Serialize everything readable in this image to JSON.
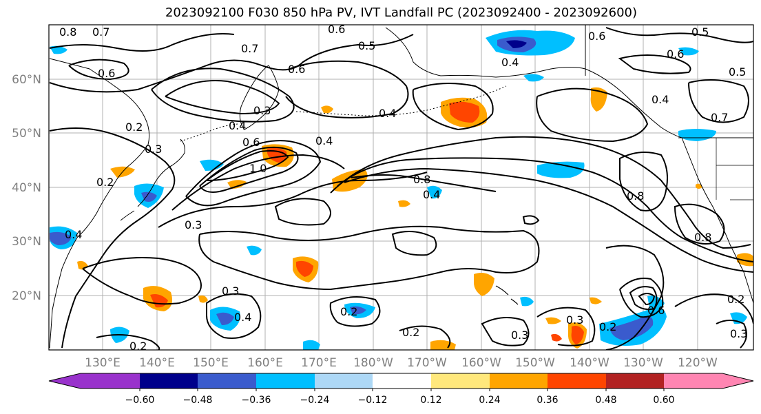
{
  "title": "2023092100 F030 850 hPa PV, IVT Landfall PC (2023092400 - 2023092600)",
  "map": {
    "lat_labels": [
      "60°N",
      "50°N",
      "40°N",
      "30°N",
      "20°N"
    ],
    "lon_labels": [
      "130°E",
      "140°E",
      "150°E",
      "160°E",
      "170°E",
      "180°W",
      "170°W",
      "160°W",
      "150°W",
      "140°W",
      "130°W",
      "120°W"
    ],
    "contour_labels": [
      "0.8",
      "0.7",
      "0.6",
      "0.6",
      "0.5",
      "0.6",
      "0.7",
      "0.6",
      "0.4",
      "0.5",
      "0.6",
      "0.5",
      "0.4",
      "0.4",
      "0.3",
      "0.2",
      "0.4",
      "0.6",
      "1.0",
      "0.8",
      "0.4",
      "0.8",
      "0.3",
      "0.3",
      "0.2",
      "0.8",
      "0.4",
      "0.3",
      "0.4",
      "0.2",
      "0.2",
      "0.3",
      "0.3",
      "0.2",
      "0.2",
      "0.6",
      "0.2",
      "0.3",
      "0.4",
      "0.7"
    ],
    "label_color": "#7f7f7f",
    "land_color": "#000000",
    "grid_color": "#b0b0b0"
  },
  "colorbar": {
    "ticks": [
      "−0.60",
      "−0.48",
      "−0.36",
      "−0.24",
      "−0.12",
      "0.12",
      "0.24",
      "0.36",
      "0.48",
      "0.60"
    ],
    "colors": [
      "#9932cc",
      "#00008b",
      "#3a5bcd",
      "#00bfff",
      "#add8f6",
      "#ffffff",
      "#ffe87c",
      "#ffa500",
      "#ff4500",
      "#b22222",
      "#ff85b2"
    ]
  }
}
